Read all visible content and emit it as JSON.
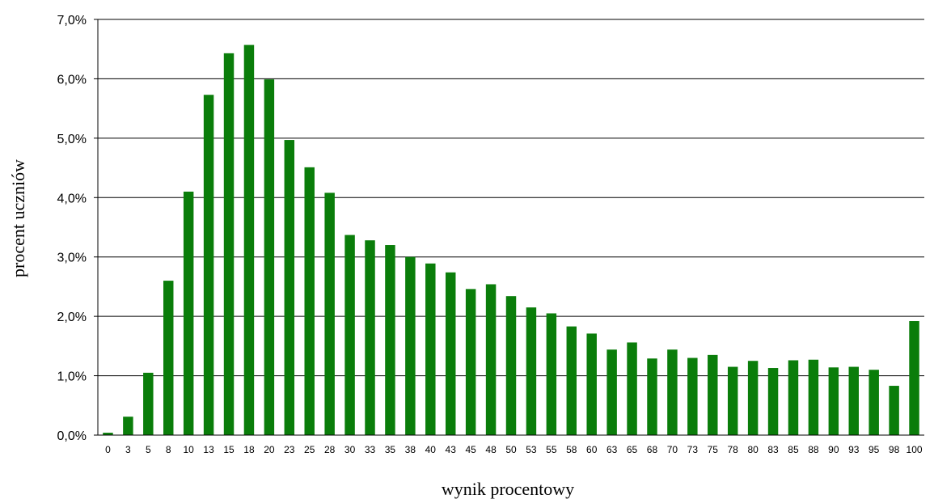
{
  "chart_data": {
    "type": "bar",
    "categories": [
      "0",
      "3",
      "5",
      "8",
      "10",
      "13",
      "15",
      "18",
      "20",
      "23",
      "25",
      "28",
      "30",
      "33",
      "35",
      "38",
      "40",
      "43",
      "45",
      "48",
      "50",
      "53",
      "55",
      "58",
      "60",
      "63",
      "65",
      "68",
      "70",
      "73",
      "75",
      "78",
      "80",
      "83",
      "85",
      "88",
      "90",
      "93",
      "95",
      "98",
      "100"
    ],
    "values": [
      0.04,
      0.31,
      1.05,
      2.6,
      4.1,
      5.73,
      6.43,
      6.57,
      5.99,
      4.97,
      4.51,
      4.08,
      3.37,
      3.28,
      3.2,
      3.0,
      2.89,
      2.74,
      2.46,
      2.54,
      2.34,
      2.15,
      2.05,
      1.83,
      1.71,
      1.44,
      1.56,
      1.29,
      1.44,
      1.3,
      1.35,
      1.15,
      1.25,
      1.13,
      1.26,
      1.27,
      1.14,
      1.15,
      1.1,
      0.83,
      1.92
    ],
    "ylim": [
      0,
      7
    ],
    "yticks": [
      "0,0%",
      "1,0%",
      "2,0%",
      "3,0%",
      "4,0%",
      "5,0%",
      "6,0%",
      "7,0%"
    ],
    "xlabel": "wynik procentowy",
    "ylabel": "procent uczniów",
    "grid": true,
    "bar_color": "#0a7d0a"
  }
}
